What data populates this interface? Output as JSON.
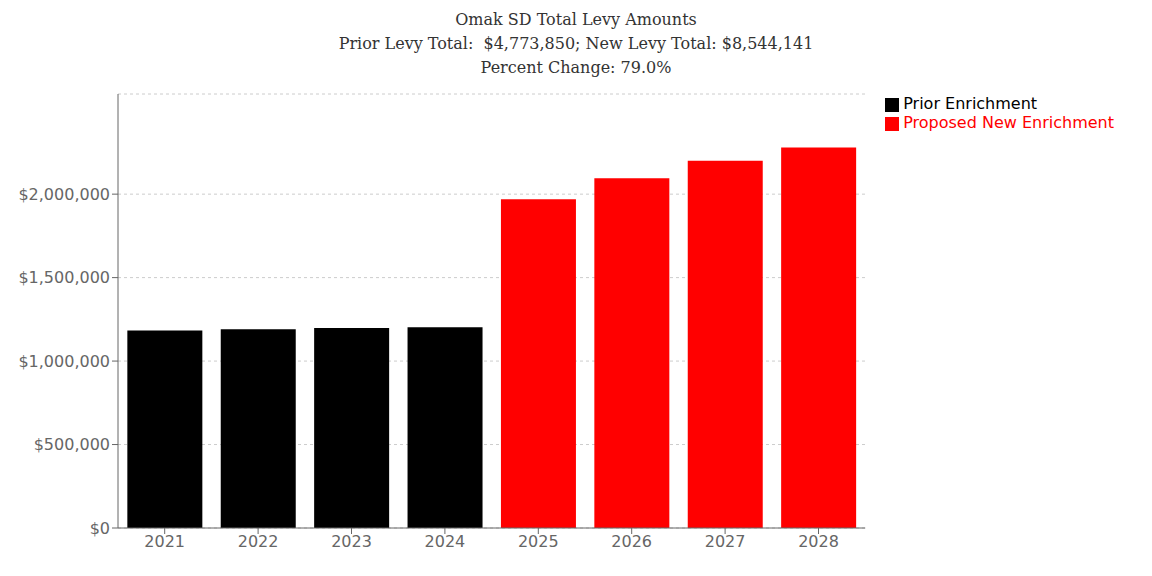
{
  "chart_data": {
    "type": "bar",
    "title": "Omak SD Total Levy Amounts\nPrior Levy Total:  $4,773,850; New Levy Total: $8,544,141\nPercent Change: 79.0%",
    "categories": [
      "2021",
      "2022",
      "2023",
      "2024",
      "2025",
      "2026",
      "2027",
      "2028"
    ],
    "series": [
      {
        "name": "Prior Enrichment",
        "color": "#000000",
        "values": [
          1183000,
          1190000,
          1198000,
          1202850,
          null,
          null,
          null,
          null
        ]
      },
      {
        "name": "Proposed New Enrichment",
        "color": "#ff0000",
        "values": [
          null,
          null,
          null,
          null,
          1970000,
          2095000,
          2200000,
          2279141
        ]
      }
    ],
    "ylim": [
      0,
      2600000
    ],
    "yticks": [
      {
        "value": 0,
        "label": "$0"
      },
      {
        "value": 500000,
        "label": "$500,000"
      },
      {
        "value": 1000000,
        "label": "$1,000,000"
      },
      {
        "value": 1500000,
        "label": "$1,500,000"
      },
      {
        "value": 2000000,
        "label": "$2,000,000"
      }
    ],
    "grid": true,
    "legend": "upper right"
  }
}
